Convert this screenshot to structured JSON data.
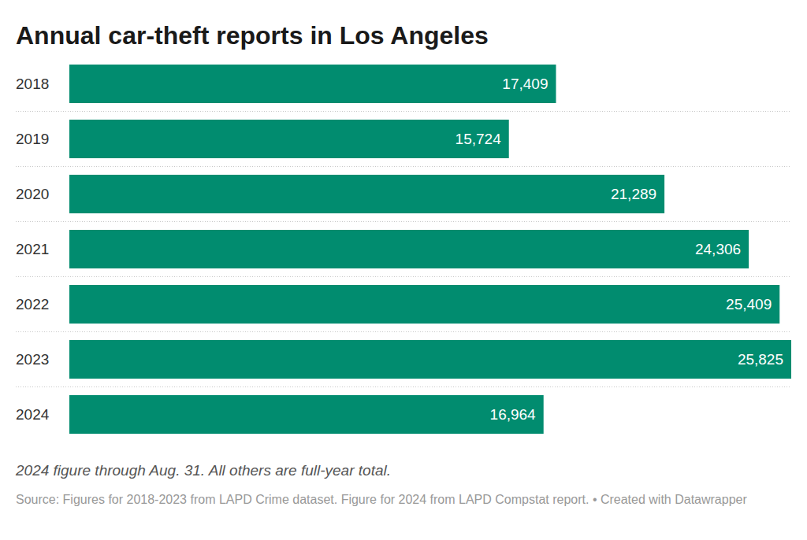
{
  "chart_data": {
    "type": "bar",
    "title": "Annual car-theft reports in Los Angeles",
    "orientation": "horizontal",
    "categories": [
      "2018",
      "2019",
      "2020",
      "2021",
      "2022",
      "2023",
      "2024"
    ],
    "values": [
      17409,
      15724,
      21289,
      24306,
      25409,
      25825,
      16964
    ],
    "value_labels": [
      "17,409",
      "15,724",
      "21,289",
      "24,306",
      "25,409",
      "25,825",
      "16,964"
    ],
    "xlim": [
      0,
      25825
    ],
    "color": "#018c6f",
    "data_labels": true,
    "tick_labels": "y",
    "annotations": [
      "2024 figure through Aug. 31. All others are full-year total.",
      "Source: Figures for 2018-2023 from LAPD Crime dataset. Figure for 2024 from LAPD Compstat report. • Created with Datawrapper"
    ]
  }
}
